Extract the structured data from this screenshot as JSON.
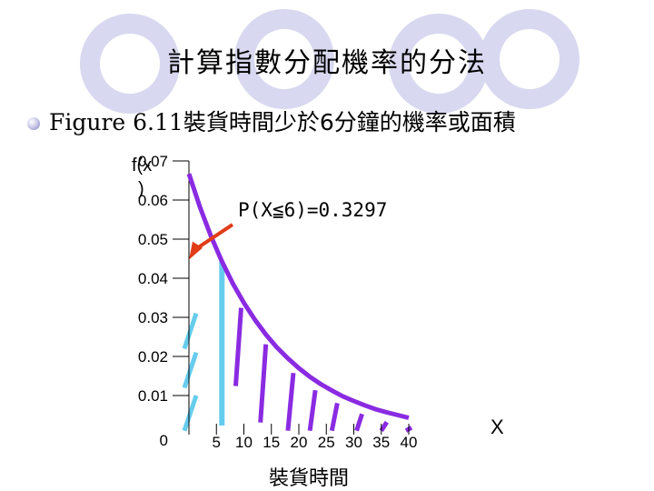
{
  "slide": {
    "title": "計算指數分配機率的分法",
    "bullet_figure": "Figure 6.11",
    "bullet_text": "裝貨時間少於6分鐘的機率或面積"
  },
  "chart_data": {
    "type": "line",
    "title": "",
    "xlabel": "裝貨時間",
    "ylabel": "f(x)",
    "x_axis_letter": "X",
    "ylim": [
      0,
      0.07
    ],
    "xlim": [
      0,
      45
    ],
    "y_ticks": [
      "0",
      "0.01",
      "0.02",
      "0.03",
      "0.04",
      "0.05",
      "0.06",
      "0.07"
    ],
    "x_ticks": [
      "5",
      "10",
      "15",
      "20",
      "25",
      "30",
      "35",
      "40"
    ],
    "series": [
      {
        "x": [
          0,
          2,
          4,
          6,
          8,
          10,
          12,
          14,
          16,
          18,
          20,
          22,
          24,
          26,
          28,
          30,
          32,
          34,
          36,
          38,
          40
        ],
        "y": [
          0.0667,
          0.0582,
          0.0508,
          0.0443,
          0.0386,
          0.0337,
          0.0294,
          0.0256,
          0.0223,
          0.0195,
          0.017,
          0.0148,
          0.0129,
          0.0113,
          0.0098,
          0.0086,
          0.0075,
          0.0065,
          0.0057,
          0.005,
          0.0043
        ]
      }
    ],
    "boundary_x": 6,
    "annotation": "P(X≦6)=0.3297",
    "colors": {
      "curve": "#8a2be2",
      "shaded_hatch": "#66ccee",
      "tail_hatch": "#8a2be2",
      "arrow": "#e03c18"
    }
  }
}
